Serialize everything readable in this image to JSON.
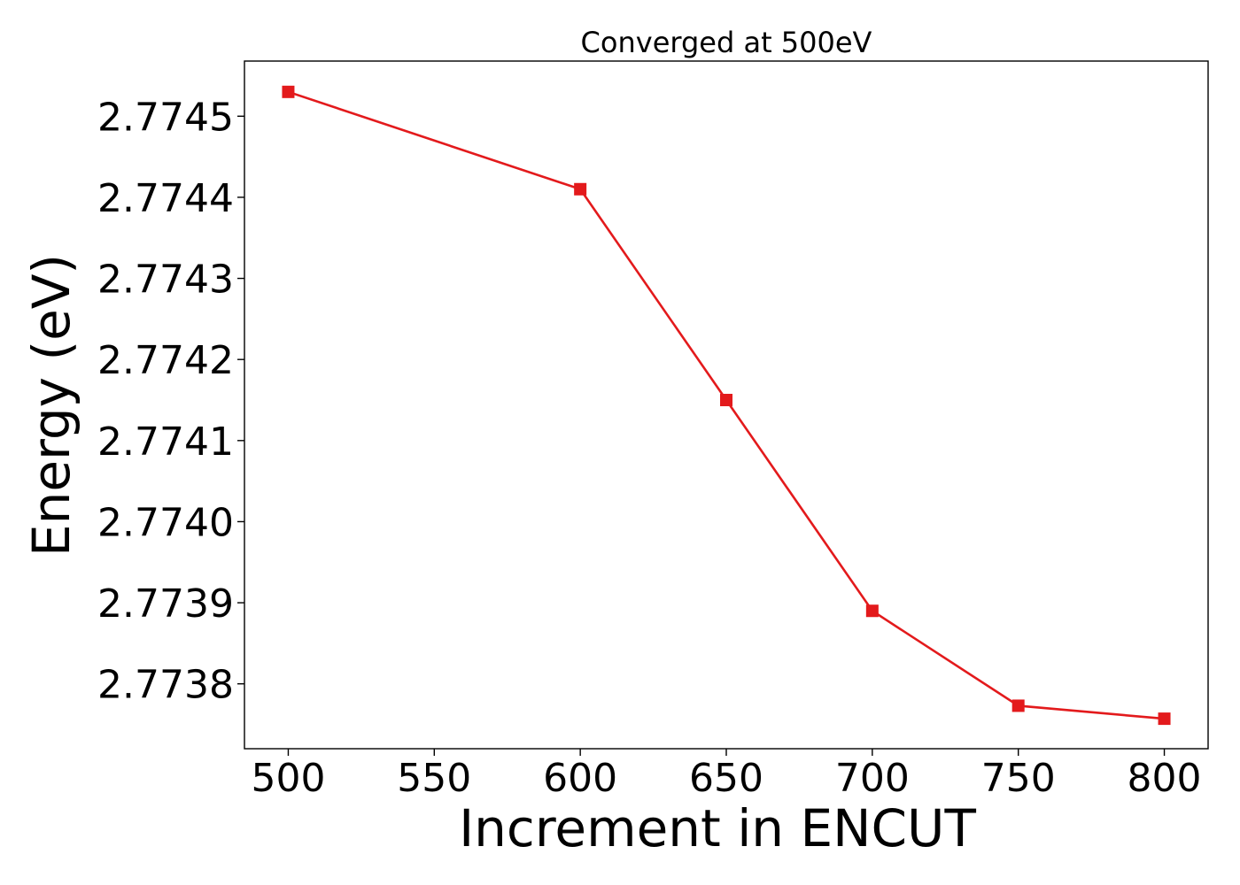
{
  "chart_data": {
    "type": "line",
    "title": "Converged at 500eV",
    "xlabel": "Increment in ENCUT",
    "ylabel": "Energy (eV)",
    "x": [
      500,
      600,
      650,
      700,
      750,
      800
    ],
    "series": [
      {
        "values": [
          2.77453,
          2.77441,
          2.77415,
          2.77389,
          2.773773,
          2.773757
        ],
        "color": "#e31a1c",
        "marker": "square"
      }
    ],
    "xlim": [
      485,
      815
    ],
    "ylim": [
      2.77372,
      2.774568
    ],
    "xticks": [
      500,
      550,
      600,
      650,
      700,
      750,
      800
    ],
    "xtick_labels": [
      "500",
      "550",
      "600",
      "650",
      "700",
      "750",
      "800"
    ],
    "yticks": [
      2.7738,
      2.7739,
      2.774,
      2.7741,
      2.7742,
      2.7743,
      2.7744,
      2.7745
    ],
    "ytick_labels": [
      "2.7738",
      "2.7739",
      "2.7740",
      "2.7741",
      "2.7742",
      "2.7743",
      "2.7744",
      "2.7745"
    ],
    "grid": false,
    "legend": "none"
  }
}
